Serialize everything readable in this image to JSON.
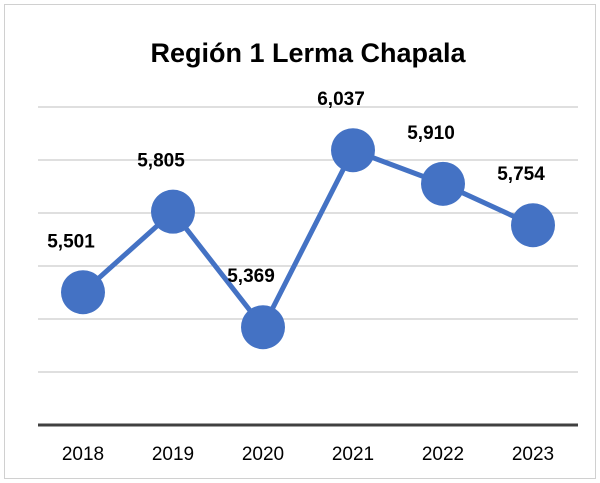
{
  "chart_data": {
    "type": "line",
    "title": "Región 1 Lerma Chapala",
    "categories": [
      "2018",
      "2019",
      "2020",
      "2021",
      "2022",
      "2023"
    ],
    "values": [
      5501,
      5805,
      5369,
      6037,
      5910,
      5754
    ],
    "value_labels": [
      "5,501",
      "5,805",
      "5,369",
      "6,037",
      "5,910",
      "5,754"
    ],
    "color": "#4472c4",
    "ylim": [
      5000,
      6200
    ],
    "yticks": [
      5000,
      5200,
      5400,
      5600,
      5800,
      6000,
      6200
    ],
    "grid": true
  }
}
